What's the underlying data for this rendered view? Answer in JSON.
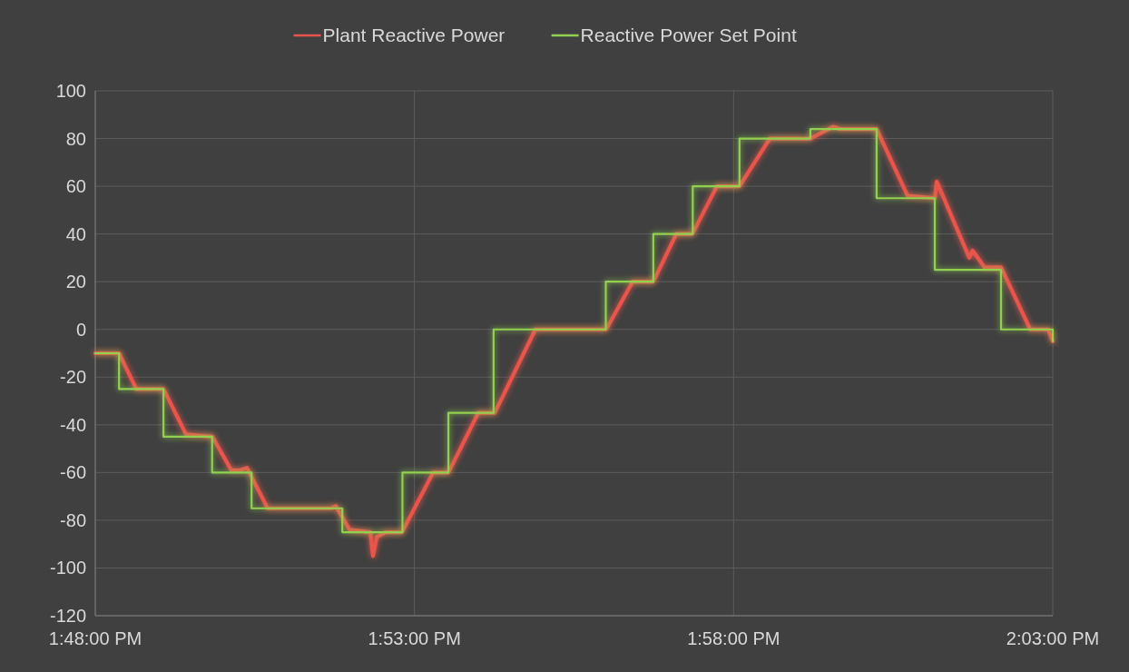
{
  "chart_data": {
    "type": "line",
    "legend": "top",
    "grid": true,
    "marker": "none",
    "line_style": "solid",
    "xlim": [
      13.8,
      14.05
    ],
    "xticks": [
      {
        "value": 13.8,
        "label": "1:48:00 PM"
      },
      {
        "value": 13.88333,
        "label": "1:53:00 PM"
      },
      {
        "value": 13.96667,
        "label": "1:58:00 PM"
      },
      {
        "value": 14.05,
        "label": "2:03:00 PM"
      }
    ],
    "ylim": [
      -120,
      100
    ],
    "yticks": [
      -120,
      -100,
      -80,
      -60,
      -40,
      -20,
      0,
      20,
      40,
      60,
      80,
      100
    ],
    "series": [
      {
        "name": "Plant Reactive Power",
        "color": "#e8544c",
        "x": [
          13.8,
          13.8062,
          13.8107,
          13.8178,
          13.8237,
          13.8306,
          13.8355,
          13.8379,
          13.8396,
          13.845,
          13.8616,
          13.8628,
          13.8664,
          13.8718,
          13.8725,
          13.8735,
          13.8758,
          13.8801,
          13.8882,
          13.8922,
          13.9,
          13.9043,
          13.9149,
          13.9334,
          13.9403,
          13.9457,
          13.9517,
          13.9559,
          13.9623,
          13.9682,
          13.9761,
          13.9867,
          13.9927,
          13.9943,
          14.004,
          14.0121,
          14.0192,
          14.0197,
          14.0282,
          14.0291,
          14.0322,
          14.0365,
          14.0441,
          14.0488,
          14.05
        ],
        "values": [
          -10,
          -10,
          -25,
          -25,
          -44,
          -45,
          -59,
          -59,
          -58,
          -75,
          -75,
          -74,
          -84,
          -85,
          -95,
          -87,
          -85,
          -85,
          -60,
          -60,
          -35,
          -35,
          0,
          0,
          20,
          20,
          40,
          40,
          60,
          60,
          80,
          80,
          85,
          84,
          84,
          56,
          55,
          62,
          30,
          33,
          26,
          26,
          0,
          0,
          -5
        ]
      },
      {
        "name": "Reactive Power Set Point",
        "type": "step",
        "color": "#92d050",
        "x": [
          13.8,
          13.8062,
          13.8178,
          13.8305,
          13.8408,
          13.8645,
          13.8802,
          13.8922,
          13.904,
          13.9333,
          13.9457,
          13.956,
          13.9682,
          13.9867,
          14.004,
          14.0192,
          14.0365,
          14.0488,
          14.05
        ],
        "values": [
          -10,
          -25,
          -45,
          -60,
          -75,
          -85,
          -60,
          -35,
          0,
          20,
          40,
          60,
          80,
          84,
          55,
          25,
          0,
          0,
          -5
        ]
      }
    ]
  }
}
